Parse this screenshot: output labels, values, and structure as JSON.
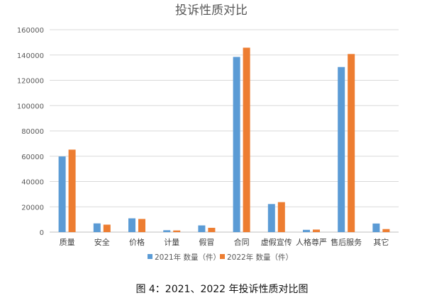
{
  "chart_data": {
    "type": "bar",
    "title": "投诉性质对比",
    "categories": [
      "质量",
      "安全",
      "价格",
      "计量",
      "假冒",
      "合同",
      "虚假宣传",
      "人格尊严",
      "售后服务",
      "其它"
    ],
    "series": [
      {
        "name": "2021年 数量（件）",
        "color": "#5b9bd5",
        "values": [
          59800,
          6900,
          10900,
          1500,
          5300,
          138500,
          22200,
          1800,
          130500,
          6800
        ]
      },
      {
        "name": "2022年 数量（件）",
        "color": "#ed7d31",
        "values": [
          65200,
          5900,
          10400,
          1300,
          3400,
          145800,
          23700,
          2000,
          140800,
          2400
        ]
      }
    ],
    "yticks": [
      "0",
      "20000",
      "40000",
      "60000",
      "80000",
      "100000",
      "120000",
      "140000",
      "160000"
    ],
    "ylim": [
      0,
      160000
    ],
    "grid": true,
    "legend": "bottom"
  },
  "caption": "图 4：2021、2022 年投诉性质对比图"
}
